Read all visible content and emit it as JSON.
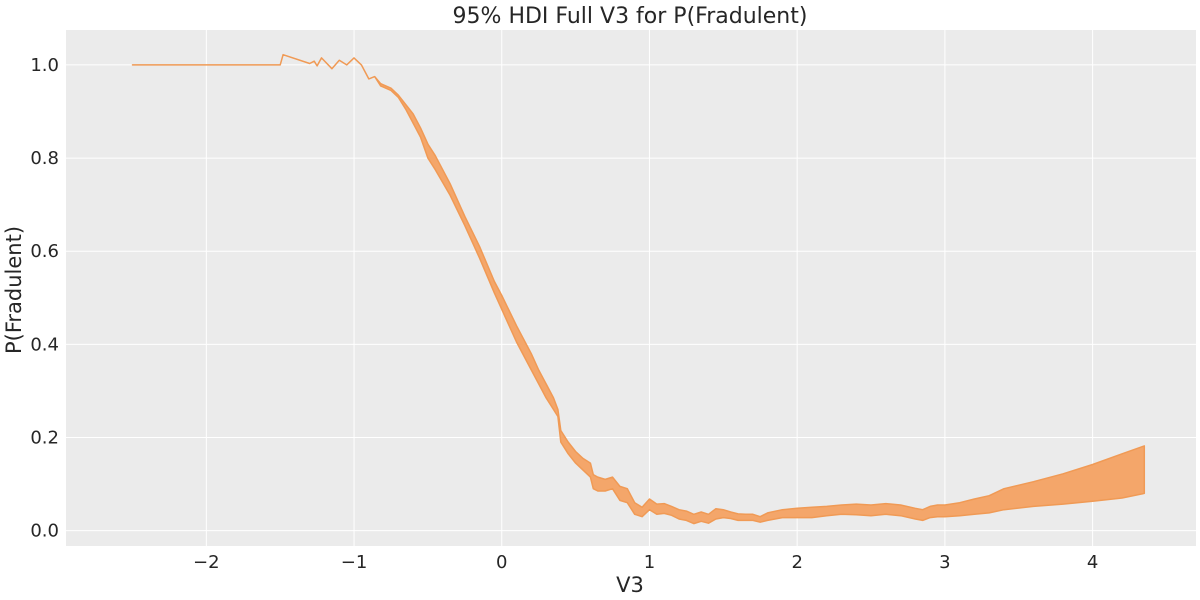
{
  "chart_data": {
    "type": "area",
    "title": "95% HDI Full V3 for P(Fradulent)",
    "xlabel": "V3",
    "ylabel": "P(Fradulent)",
    "xlim": [
      -2.95,
      4.7
    ],
    "ylim": [
      -0.033,
      1.075
    ],
    "xticks": [
      -2,
      -1,
      0,
      1,
      2,
      3,
      4
    ],
    "xtick_labels": [
      "−2",
      "−1",
      "0",
      "1",
      "2",
      "3",
      "4"
    ],
    "yticks": [
      0.0,
      0.2,
      0.4,
      0.6,
      0.8,
      1.0
    ],
    "ytick_labels": [
      "0.0",
      "0.2",
      "0.4",
      "0.6",
      "0.8",
      "1.0"
    ],
    "grid": true,
    "background_color": "#ebebeb",
    "fill_color": "#f4a66a",
    "line_color": "#f09a55",
    "series": [
      {
        "kind": "hdi_band",
        "x": [
          -2.5,
          -2.0,
          -1.5,
          -1.48,
          -1.3,
          -1.27,
          -1.25,
          -1.22,
          -1.15,
          -1.1,
          -1.05,
          -1.0,
          -0.95,
          -0.9,
          -0.86,
          -0.82,
          -0.75,
          -0.7,
          -0.65,
          -0.6,
          -0.55,
          -0.5,
          -0.45,
          -0.35,
          -0.25,
          -0.15,
          -0.05,
          0.0,
          0.1,
          0.2,
          0.25,
          0.3,
          0.35,
          0.38,
          0.4,
          0.45,
          0.5,
          0.55,
          0.6,
          0.62,
          0.65,
          0.7,
          0.75,
          0.8,
          0.85,
          0.9,
          0.95,
          1.0,
          1.05,
          1.1,
          1.15,
          1.2,
          1.25,
          1.3,
          1.35,
          1.4,
          1.45,
          1.5,
          1.55,
          1.6,
          1.65,
          1.7,
          1.75,
          1.8,
          1.9,
          2.0,
          2.1,
          2.2,
          2.3,
          2.4,
          2.5,
          2.6,
          2.7,
          2.8,
          2.85,
          2.9,
          2.95,
          3.0,
          3.1,
          3.2,
          3.3,
          3.4,
          3.6,
          3.8,
          4.0,
          4.2,
          4.35
        ],
        "lower": [
          1.0,
          1.0,
          1.0,
          1.022,
          1.003,
          1.008,
          0.998,
          1.015,
          0.992,
          1.01,
          1.0,
          1.015,
          1.0,
          0.97,
          0.975,
          0.955,
          0.945,
          0.93,
          0.905,
          0.875,
          0.845,
          0.8,
          0.775,
          0.72,
          0.655,
          0.585,
          0.51,
          0.475,
          0.405,
          0.345,
          0.315,
          0.285,
          0.26,
          0.245,
          0.19,
          0.165,
          0.145,
          0.13,
          0.115,
          0.09,
          0.085,
          0.085,
          0.09,
          0.065,
          0.06,
          0.035,
          0.03,
          0.045,
          0.035,
          0.037,
          0.033,
          0.025,
          0.022,
          0.015,
          0.02,
          0.016,
          0.025,
          0.028,
          0.026,
          0.022,
          0.022,
          0.022,
          0.018,
          0.022,
          0.028,
          0.028,
          0.028,
          0.032,
          0.035,
          0.034,
          0.032,
          0.035,
          0.032,
          0.025,
          0.022,
          0.028,
          0.03,
          0.03,
          0.032,
          0.035,
          0.038,
          0.045,
          0.052,
          0.057,
          0.063,
          0.07,
          0.08
        ],
        "upper": [
          1.0,
          1.0,
          1.0,
          1.022,
          1.003,
          1.008,
          0.998,
          1.015,
          0.992,
          1.01,
          1.0,
          1.015,
          1.0,
          0.97,
          0.975,
          0.96,
          0.95,
          0.935,
          0.915,
          0.895,
          0.865,
          0.83,
          0.805,
          0.745,
          0.675,
          0.61,
          0.535,
          0.505,
          0.44,
          0.38,
          0.345,
          0.315,
          0.285,
          0.26,
          0.215,
          0.19,
          0.17,
          0.155,
          0.145,
          0.12,
          0.115,
          0.11,
          0.115,
          0.095,
          0.09,
          0.06,
          0.05,
          0.068,
          0.057,
          0.058,
          0.052,
          0.045,
          0.042,
          0.035,
          0.04,
          0.035,
          0.047,
          0.045,
          0.04,
          0.036,
          0.035,
          0.035,
          0.03,
          0.038,
          0.045,
          0.048,
          0.05,
          0.052,
          0.055,
          0.057,
          0.055,
          0.058,
          0.055,
          0.048,
          0.045,
          0.052,
          0.055,
          0.055,
          0.06,
          0.068,
          0.075,
          0.09,
          0.105,
          0.122,
          0.142,
          0.165,
          0.182
        ]
      }
    ]
  }
}
